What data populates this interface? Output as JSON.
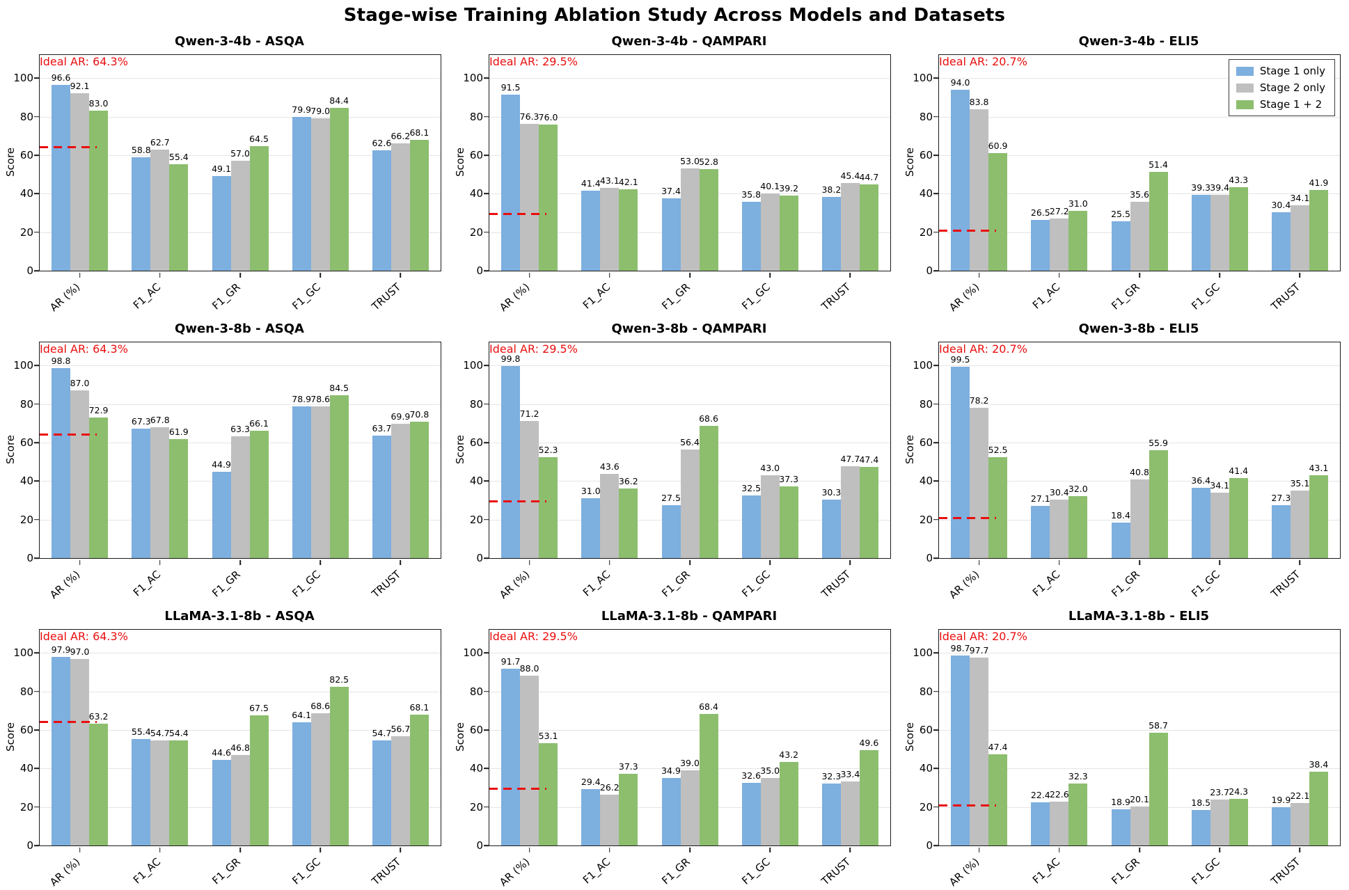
{
  "figure_title": "Stage-wise Training Ablation Study Across Models and Datasets",
  "axes": {
    "ylabel": "Score",
    "yticks": [
      0,
      20,
      40,
      60,
      80,
      100
    ],
    "ylim": [
      0,
      112
    ],
    "categories": [
      "AR (%)",
      "F1_AC",
      "F1_GR",
      "F1_GC",
      "TRUST"
    ]
  },
  "colors": {
    "stage1": "#7dafdf",
    "stage2": "#bfbfbf",
    "stage12": "#8cbe6e",
    "ideal_ar": "#ea0e0e",
    "gridline": "#e5e5e5"
  },
  "legend": {
    "labels": [
      "Stage 1 only",
      "Stage 2 only",
      "Stage 1 + 2"
    ],
    "location": "upper right of Qwen-3-4b - ELI5 subplot"
  },
  "chart_data": [
    {
      "type": "bar",
      "title": "Qwen-3-4b - ASQA",
      "categories": [
        "AR (%)",
        "F1_AC",
        "F1_GR",
        "F1_GC",
        "TRUST"
      ],
      "series": [
        {
          "name": "Stage 1 only",
          "values": [
            96.6,
            58.8,
            49.1,
            79.9,
            62.6
          ]
        },
        {
          "name": "Stage 2 only",
          "values": [
            92.1,
            62.7,
            57.0,
            79.0,
            66.2
          ]
        },
        {
          "name": "Stage 1 + 2",
          "values": [
            83.0,
            55.4,
            64.5,
            84.4,
            68.1
          ]
        }
      ],
      "ideal_ar_value": 64.3,
      "ideal_ar_label": "Ideal AR: 64.3%",
      "ylabel": "Score",
      "ylim": [
        0,
        112
      ],
      "show_legend": false
    },
    {
      "type": "bar",
      "title": "Qwen-3-4b - QAMPARI",
      "categories": [
        "AR (%)",
        "F1_AC",
        "F1_GR",
        "F1_GC",
        "TRUST"
      ],
      "series": [
        {
          "name": "Stage 1 only",
          "values": [
            91.5,
            41.4,
            37.4,
            35.8,
            38.2
          ]
        },
        {
          "name": "Stage 2 only",
          "values": [
            76.3,
            43.1,
            53.0,
            40.1,
            45.4
          ]
        },
        {
          "name": "Stage 1 + 2",
          "values": [
            76.0,
            42.1,
            52.8,
            39.2,
            44.7
          ]
        }
      ],
      "ideal_ar_value": 29.5,
      "ideal_ar_label": "Ideal AR: 29.5%",
      "ylabel": "Score",
      "ylim": [
        0,
        112
      ],
      "show_legend": false
    },
    {
      "type": "bar",
      "title": "Qwen-3-4b - ELI5",
      "categories": [
        "AR (%)",
        "F1_AC",
        "F1_GR",
        "F1_GC",
        "TRUST"
      ],
      "series": [
        {
          "name": "Stage 1 only",
          "values": [
            94.0,
            26.5,
            25.5,
            39.3,
            30.4
          ]
        },
        {
          "name": "Stage 2 only",
          "values": [
            83.8,
            27.2,
            35.6,
            39.4,
            34.1
          ]
        },
        {
          "name": "Stage 1 + 2",
          "values": [
            60.9,
            31.0,
            51.4,
            43.3,
            41.9
          ]
        }
      ],
      "ideal_ar_value": 20.7,
      "ideal_ar_label": "Ideal AR: 20.7%",
      "ylabel": "Score",
      "ylim": [
        0,
        112
      ],
      "show_legend": true
    },
    {
      "type": "bar",
      "title": "Qwen-3-8b - ASQA",
      "categories": [
        "AR (%)",
        "F1_AC",
        "F1_GR",
        "F1_GC",
        "TRUST"
      ],
      "series": [
        {
          "name": "Stage 1 only",
          "values": [
            98.8,
            67.3,
            44.9,
            78.9,
            63.7
          ]
        },
        {
          "name": "Stage 2 only",
          "values": [
            87.0,
            67.8,
            63.3,
            78.6,
            69.9
          ]
        },
        {
          "name": "Stage 1 + 2",
          "values": [
            72.9,
            61.9,
            66.1,
            84.5,
            70.8
          ]
        }
      ],
      "ideal_ar_value": 64.3,
      "ideal_ar_label": "Ideal AR: 64.3%",
      "ylabel": "Score",
      "ylim": [
        0,
        112
      ],
      "show_legend": false
    },
    {
      "type": "bar",
      "title": "Qwen-3-8b - QAMPARI",
      "categories": [
        "AR (%)",
        "F1_AC",
        "F1_GR",
        "F1_GC",
        "TRUST"
      ],
      "series": [
        {
          "name": "Stage 1 only",
          "values": [
            99.8,
            31.0,
            27.5,
            32.5,
            30.3
          ]
        },
        {
          "name": "Stage 2 only",
          "values": [
            71.2,
            43.6,
            56.4,
            43.0,
            47.7
          ]
        },
        {
          "name": "Stage 1 + 2",
          "values": [
            52.3,
            36.2,
            68.6,
            37.3,
            47.4
          ]
        }
      ],
      "ideal_ar_value": 29.5,
      "ideal_ar_label": "Ideal AR: 29.5%",
      "ylabel": "Score",
      "ylim": [
        0,
        112
      ],
      "show_legend": false
    },
    {
      "type": "bar",
      "title": "Qwen-3-8b - ELI5",
      "categories": [
        "AR (%)",
        "F1_AC",
        "F1_GR",
        "F1_GC",
        "TRUST"
      ],
      "series": [
        {
          "name": "Stage 1 only",
          "values": [
            99.5,
            27.1,
            18.4,
            36.4,
            27.3
          ]
        },
        {
          "name": "Stage 2 only",
          "values": [
            78.2,
            30.4,
            40.8,
            34.1,
            35.1
          ]
        },
        {
          "name": "Stage 1 + 2",
          "values": [
            52.5,
            32.0,
            55.9,
            41.4,
            43.1
          ]
        }
      ],
      "ideal_ar_value": 20.7,
      "ideal_ar_label": "Ideal AR: 20.7%",
      "ylabel": "Score",
      "ylim": [
        0,
        112
      ],
      "show_legend": false
    },
    {
      "type": "bar",
      "title": "LLaMA-3.1-8b - ASQA",
      "categories": [
        "AR (%)",
        "F1_AC",
        "F1_GR",
        "F1_GC",
        "TRUST"
      ],
      "series": [
        {
          "name": "Stage 1 only",
          "values": [
            97.9,
            55.4,
            44.6,
            64.1,
            54.7
          ]
        },
        {
          "name": "Stage 2 only",
          "values": [
            97.0,
            54.7,
            46.8,
            68.6,
            56.7
          ]
        },
        {
          "name": "Stage 1 + 2",
          "values": [
            63.2,
            54.4,
            67.5,
            82.5,
            68.1
          ]
        }
      ],
      "ideal_ar_value": 64.3,
      "ideal_ar_label": "Ideal AR: 64.3%",
      "ylabel": "Score",
      "ylim": [
        0,
        112
      ],
      "show_legend": false
    },
    {
      "type": "bar",
      "title": "LLaMA-3.1-8b - QAMPARI",
      "categories": [
        "AR (%)",
        "F1_AC",
        "F1_GR",
        "F1_GC",
        "TRUST"
      ],
      "series": [
        {
          "name": "Stage 1 only",
          "values": [
            91.7,
            29.4,
            34.9,
            32.6,
            32.3
          ]
        },
        {
          "name": "Stage 2 only",
          "values": [
            88.0,
            26.2,
            39.0,
            35.0,
            33.4
          ]
        },
        {
          "name": "Stage 1 + 2",
          "values": [
            53.1,
            37.3,
            68.4,
            43.2,
            49.6
          ]
        }
      ],
      "ideal_ar_value": 29.5,
      "ideal_ar_label": "Ideal AR: 29.5%",
      "ylabel": "Score",
      "ylim": [
        0,
        112
      ],
      "show_legend": false
    },
    {
      "type": "bar",
      "title": "LLaMA-3.1-8b - ELI5",
      "categories": [
        "AR (%)",
        "F1_AC",
        "F1_GR",
        "F1_GC",
        "TRUST"
      ],
      "series": [
        {
          "name": "Stage 1 only",
          "values": [
            98.7,
            22.4,
            18.9,
            18.5,
            19.9
          ]
        },
        {
          "name": "Stage 2 only",
          "values": [
            97.7,
            22.6,
            20.1,
            23.7,
            22.1
          ]
        },
        {
          "name": "Stage 1 + 2",
          "values": [
            47.4,
            32.3,
            58.7,
            24.3,
            38.4
          ]
        }
      ],
      "ideal_ar_value": 20.7,
      "ideal_ar_label": "Ideal AR: 20.7%",
      "ylabel": "Score",
      "ylim": [
        0,
        112
      ],
      "show_legend": false
    }
  ]
}
